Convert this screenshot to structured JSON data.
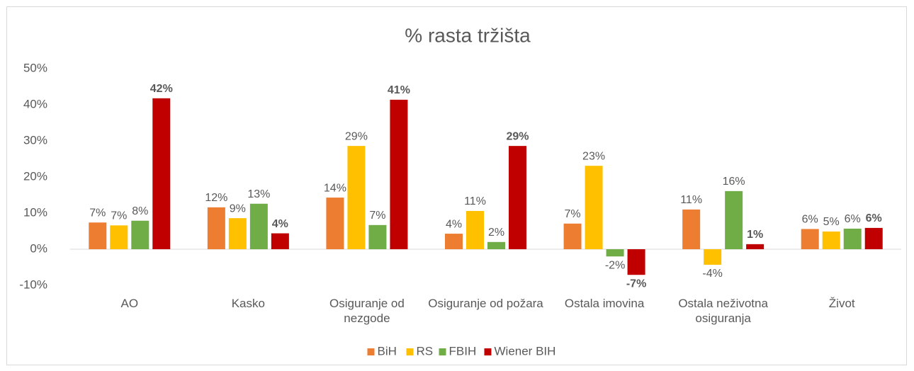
{
  "chart_data": {
    "type": "bar",
    "title": "% rasta tržišta",
    "categories": [
      "AO",
      "Kasko",
      "Osiguranje od nezgode",
      "Osiguranje od požara",
      "Ostala imovina",
      "Ostala neživotna osiguranja",
      "Život"
    ],
    "series": [
      {
        "name": "BiH",
        "color": "#ED7D31",
        "values": [
          7.4,
          11.6,
          14.3,
          4.3,
          7.1,
          11.0,
          5.6
        ],
        "value_labels": [
          "7%",
          "12%",
          "14%",
          "4%",
          "7%",
          "11%",
          "6%"
        ]
      },
      {
        "name": "RS",
        "color": "#FFC000",
        "values": [
          6.6,
          8.6,
          28.6,
          10.6,
          23.1,
          -4.3,
          4.9
        ],
        "value_labels": [
          "7%",
          "9%",
          "29%",
          "11%",
          "23%",
          "-4%",
          "5%"
        ]
      },
      {
        "name": "FBIH",
        "color": "#70AD47",
        "values": [
          7.9,
          12.6,
          6.7,
          2.0,
          -2.0,
          16.1,
          5.7
        ],
        "value_labels": [
          "8%",
          "13%",
          "7%",
          "2%",
          "-2%",
          "16%",
          "6%"
        ]
      },
      {
        "name": "Wiener BIH",
        "color": "#C00000",
        "bold": true,
        "values": [
          41.8,
          4.4,
          41.4,
          28.6,
          -7.1,
          1.4,
          5.9
        ],
        "value_labels": [
          "42%",
          "4%",
          "41%",
          "29%",
          "-7%",
          "1%",
          "6%"
        ]
      }
    ],
    "ylim": [
      -10,
      50
    ],
    "yticks": [
      {
        "value": -10,
        "label": "-10%"
      },
      {
        "value": 0,
        "label": "0%"
      },
      {
        "value": 10,
        "label": "10%"
      },
      {
        "value": 20,
        "label": "20%"
      },
      {
        "value": 30,
        "label": "30%"
      },
      {
        "value": 40,
        "label": "40%"
      },
      {
        "value": 50,
        "label": "50%"
      }
    ],
    "grid": false,
    "legend": "bottom"
  }
}
